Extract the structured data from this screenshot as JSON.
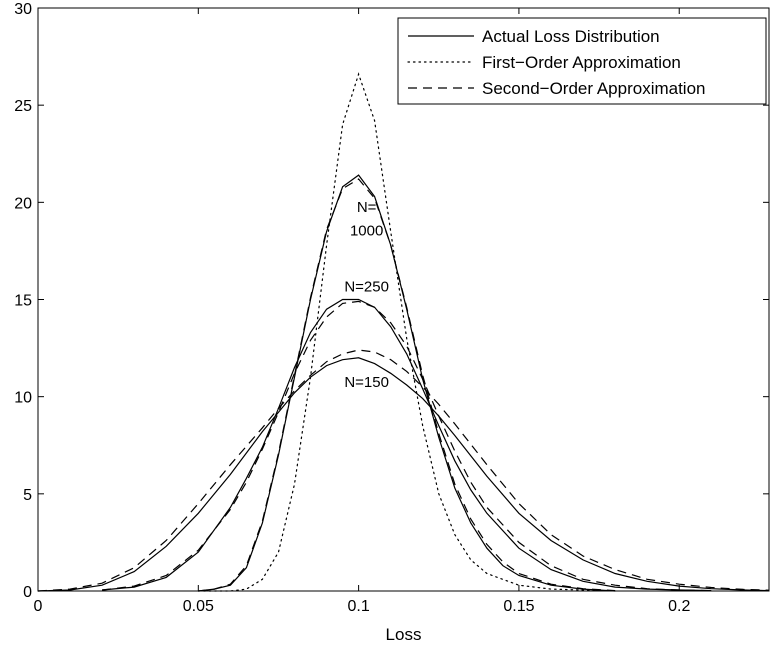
{
  "chart_data": {
    "type": "line",
    "xlabel": "Loss",
    "ylabel": "",
    "title": "",
    "xlim": [
      0,
      0.228
    ],
    "ylim": [
      0,
      30
    ],
    "grid": false,
    "legend_position": "top-right",
    "xticks": [
      {
        "value": 0,
        "label": "0"
      },
      {
        "value": 0.05,
        "label": "0.05"
      },
      {
        "value": 0.1,
        "label": "0.1"
      },
      {
        "value": 0.15,
        "label": "0.15"
      },
      {
        "value": 0.2,
        "label": "0.2"
      }
    ],
    "yticks": [
      {
        "value": 0,
        "label": "0"
      },
      {
        "value": 5,
        "label": "5"
      },
      {
        "value": 10,
        "label": "10"
      },
      {
        "value": 15,
        "label": "15"
      },
      {
        "value": 20,
        "label": "20"
      },
      {
        "value": 25,
        "label": "25"
      },
      {
        "value": 30,
        "label": "30"
      }
    ],
    "legend": [
      {
        "label": "Actual Loss Distribution",
        "style": "solid"
      },
      {
        "label": "First−Order Approximation",
        "style": "dotted"
      },
      {
        "label": "Second−Order Approximation",
        "style": "dashed"
      }
    ],
    "annotations": [
      {
        "text": "N=",
        "x": 0.1025,
        "y": 19.5
      },
      {
        "text": "1000",
        "x": 0.1025,
        "y": 18.3
      },
      {
        "text": "N=250",
        "x": 0.1025,
        "y": 15.4
      },
      {
        "text": "N=150",
        "x": 0.1025,
        "y": 10.5
      }
    ],
    "series": [
      {
        "style": "dotted",
        "group": "first-order",
        "x": [
          0.05,
          0.06,
          0.065,
          0.07,
          0.075,
          0.08,
          0.085,
          0.09,
          0.095,
          0.1,
          0.105,
          0.11,
          0.115,
          0.12,
          0.125,
          0.13,
          0.135,
          0.14,
          0.15,
          0.16,
          0.17,
          0.18
        ],
        "y": [
          0,
          0,
          0.1,
          0.6,
          2.0,
          5.5,
          11.0,
          17.8,
          24.0,
          26.6,
          24.2,
          18.5,
          13.0,
          8.5,
          5.0,
          2.9,
          1.6,
          0.9,
          0.3,
          0.1,
          0.05,
          0
        ]
      },
      {
        "style": "solid",
        "group": "N=1000",
        "x": [
          0.05,
          0.055,
          0.06,
          0.065,
          0.07,
          0.075,
          0.08,
          0.085,
          0.09,
          0.095,
          0.1,
          0.105,
          0.11,
          0.115,
          0.12,
          0.125,
          0.13,
          0.135,
          0.14,
          0.145,
          0.15,
          0.16,
          0.17,
          0.18
        ],
        "y": [
          0,
          0.1,
          0.3,
          1.2,
          3.5,
          7.0,
          11.0,
          15.0,
          18.5,
          20.8,
          21.4,
          20.3,
          17.8,
          14.5,
          10.9,
          7.9,
          5.3,
          3.5,
          2.2,
          1.3,
          0.8,
          0.3,
          0.1,
          0
        ]
      },
      {
        "style": "dashed",
        "group": "N=1000",
        "x": [
          0.05,
          0.055,
          0.06,
          0.065,
          0.07,
          0.075,
          0.08,
          0.085,
          0.09,
          0.095,
          0.1,
          0.105,
          0.11,
          0.115,
          0.12,
          0.125,
          0.13,
          0.135,
          0.14,
          0.145,
          0.15,
          0.16,
          0.17,
          0.18
        ],
        "y": [
          0,
          0.1,
          0.35,
          1.3,
          3.6,
          7.1,
          11.1,
          15.1,
          18.6,
          20.7,
          21.2,
          20.2,
          17.8,
          14.6,
          11.1,
          8.1,
          5.5,
          3.7,
          2.4,
          1.5,
          0.9,
          0.35,
          0.12,
          0.02
        ]
      },
      {
        "style": "solid",
        "group": "N=250",
        "x": [
          0.02,
          0.03,
          0.04,
          0.05,
          0.06,
          0.065,
          0.07,
          0.075,
          0.08,
          0.085,
          0.09,
          0.095,
          0.1,
          0.105,
          0.11,
          0.115,
          0.12,
          0.125,
          0.13,
          0.135,
          0.14,
          0.15,
          0.16,
          0.17,
          0.18,
          0.19,
          0.2,
          0.21
        ],
        "y": [
          0.05,
          0.2,
          0.7,
          2.0,
          4.3,
          5.8,
          7.4,
          9.4,
          11.5,
          13.3,
          14.5,
          15.0,
          15.0,
          14.6,
          13.6,
          12.2,
          10.4,
          8.5,
          6.7,
          5.2,
          4.0,
          2.2,
          1.1,
          0.5,
          0.2,
          0.1,
          0.05,
          0.02
        ]
      },
      {
        "style": "dashed",
        "group": "N=250",
        "x": [
          0.02,
          0.03,
          0.04,
          0.05,
          0.06,
          0.065,
          0.07,
          0.075,
          0.08,
          0.085,
          0.09,
          0.095,
          0.1,
          0.105,
          0.11,
          0.115,
          0.12,
          0.125,
          0.13,
          0.135,
          0.14,
          0.15,
          0.16,
          0.17,
          0.18,
          0.19,
          0.2,
          0.21
        ],
        "y": [
          0.05,
          0.25,
          0.8,
          2.1,
          4.2,
          5.6,
          7.3,
          9.2,
          11.2,
          12.9,
          14.1,
          14.8,
          14.9,
          14.6,
          13.8,
          12.6,
          10.9,
          9.0,
          7.2,
          5.6,
          4.3,
          2.5,
          1.3,
          0.6,
          0.3,
          0.12,
          0.05,
          0.02
        ]
      },
      {
        "style": "solid",
        "group": "N=150",
        "x": [
          0.0,
          0.01,
          0.02,
          0.03,
          0.04,
          0.05,
          0.06,
          0.07,
          0.075,
          0.08,
          0.085,
          0.09,
          0.095,
          0.1,
          0.105,
          0.11,
          0.115,
          0.12,
          0.125,
          0.13,
          0.14,
          0.15,
          0.16,
          0.17,
          0.18,
          0.19,
          0.2,
          0.21,
          0.22,
          0.228
        ],
        "y": [
          0,
          0.05,
          0.3,
          1.0,
          2.3,
          4.0,
          6.0,
          8.2,
          9.2,
          10.2,
          11.0,
          11.6,
          11.9,
          12.0,
          11.7,
          11.2,
          10.6,
          9.9,
          9.0,
          8.0,
          5.9,
          4.0,
          2.6,
          1.6,
          0.9,
          0.5,
          0.25,
          0.12,
          0.05,
          0.02
        ]
      },
      {
        "style": "dashed",
        "group": "N=150",
        "x": [
          0.0,
          0.01,
          0.02,
          0.03,
          0.04,
          0.05,
          0.06,
          0.07,
          0.075,
          0.08,
          0.085,
          0.09,
          0.095,
          0.1,
          0.105,
          0.11,
          0.115,
          0.12,
          0.125,
          0.13,
          0.14,
          0.15,
          0.16,
          0.17,
          0.18,
          0.19,
          0.2,
          0.21,
          0.22,
          0.228
        ],
        "y": [
          0,
          0.1,
          0.4,
          1.2,
          2.6,
          4.5,
          6.5,
          8.4,
          9.4,
          10.3,
          11.1,
          11.8,
          12.2,
          12.4,
          12.3,
          11.9,
          11.3,
          10.5,
          9.6,
          8.6,
          6.5,
          4.5,
          2.9,
          1.8,
          1.1,
          0.6,
          0.35,
          0.18,
          0.08,
          0.04
        ]
      }
    ]
  }
}
